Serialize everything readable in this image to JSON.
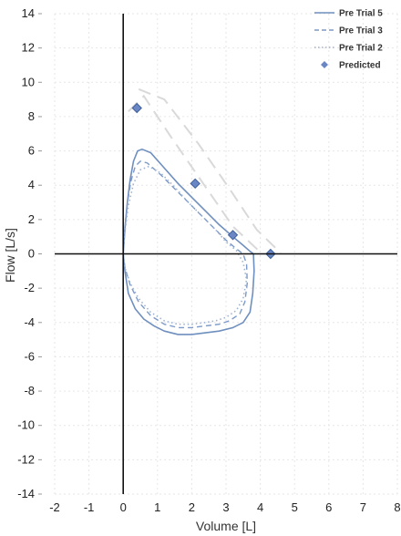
{
  "chart_data": {
    "type": "line",
    "xlabel": "Volume [L]",
    "ylabel": "Flow [L/s]",
    "xlim": [
      -2,
      8
    ],
    "ylim": [
      -14,
      14
    ],
    "x_ticks": [
      "-2",
      "-1",
      "0",
      "1",
      "2",
      "3",
      "4",
      "5",
      "6",
      "7",
      "8"
    ],
    "y_ticks": [
      "14",
      "12",
      "10",
      "8",
      "6",
      "4",
      "2",
      "0",
      "-2",
      "-4",
      "-6",
      "-8",
      "-10",
      "-12",
      "-14"
    ],
    "grid": true,
    "legend_position": "top-right",
    "legend": [
      "Pre Trial 5",
      "Pre Trial 3",
      "Pre Trial 2",
      "Predicted"
    ],
    "colors": {
      "trial5": "#6f8fbf",
      "trial3": "#7d9ac8",
      "trial2": "#9fb2cf",
      "predicted": "#6a86c4",
      "predicted_envelope": "#d9d9d9",
      "axis": "#111111",
      "grid": "#e6e6e6"
    },
    "series": [
      {
        "name": "Pre Trial 5",
        "style": "solid",
        "x": [
          0.0,
          0.05,
          0.12,
          0.2,
          0.3,
          0.42,
          0.55,
          0.8,
          1.2,
          1.6,
          2.0,
          2.4,
          2.8,
          3.2,
          3.5,
          3.7,
          3.8,
          3.82,
          3.78,
          3.7,
          3.5,
          3.2,
          2.8,
          2.4,
          2.0,
          1.6,
          1.2,
          0.9,
          0.6,
          0.35,
          0.15,
          0.05,
          0.0
        ],
        "y": [
          0.0,
          1.5,
          3.0,
          4.3,
          5.4,
          6.0,
          6.1,
          5.9,
          5.0,
          4.1,
          3.3,
          2.5,
          1.7,
          1.0,
          0.5,
          0.15,
          0.0,
          -1.0,
          -2.3,
          -3.4,
          -4.0,
          -4.3,
          -4.5,
          -4.6,
          -4.7,
          -4.7,
          -4.5,
          -4.2,
          -3.8,
          -3.2,
          -2.3,
          -1.0,
          0.0
        ]
      },
      {
        "name": "Pre Trial 3",
        "style": "dashed",
        "x": [
          0.0,
          0.05,
          0.12,
          0.22,
          0.35,
          0.5,
          0.7,
          1.1,
          1.5,
          1.9,
          2.3,
          2.7,
          3.0,
          3.3,
          3.5,
          3.6,
          3.62,
          3.55,
          3.4,
          3.1,
          2.8,
          2.4,
          2.0,
          1.6,
          1.2,
          0.8,
          0.45,
          0.2,
          0.05,
          0.0
        ],
        "y": [
          0.0,
          1.4,
          2.9,
          4.2,
          5.1,
          5.4,
          5.3,
          4.6,
          3.8,
          3.0,
          2.2,
          1.4,
          0.8,
          0.3,
          0.0,
          -0.6,
          -1.7,
          -2.8,
          -3.5,
          -3.9,
          -4.1,
          -4.2,
          -4.3,
          -4.3,
          -4.1,
          -3.6,
          -2.8,
          -1.8,
          -0.8,
          0.0
        ]
      },
      {
        "name": "Pre Trial 2",
        "style": "dotted",
        "x": [
          0.0,
          0.05,
          0.15,
          0.3,
          0.5,
          0.75,
          1.1,
          1.5,
          1.9,
          2.3,
          2.7,
          3.0,
          3.3,
          3.5,
          3.6,
          3.5,
          3.3,
          3.0,
          2.7,
          2.4,
          2.0,
          1.6,
          1.2,
          0.8,
          0.45,
          0.2,
          0.05,
          0.0
        ],
        "y": [
          0.0,
          1.3,
          2.8,
          4.1,
          4.9,
          5.1,
          4.7,
          3.9,
          3.0,
          2.2,
          1.4,
          0.7,
          0.2,
          -0.5,
          -1.5,
          -2.6,
          -3.3,
          -3.7,
          -3.9,
          -4.0,
          -4.1,
          -4.1,
          -3.9,
          -3.4,
          -2.6,
          -1.7,
          -0.8,
          0.0
        ]
      },
      {
        "name": "Predicted",
        "style": "markers",
        "x": [
          0.4,
          2.1,
          3.2,
          4.3
        ],
        "y": [
          8.5,
          4.1,
          1.1,
          0.0
        ]
      }
    ],
    "predicted_envelope": [
      {
        "x": [
          0.15,
          0.6,
          1.4,
          2.3,
          3.2,
          4.0
        ],
        "y": [
          8.3,
          9.2,
          6.8,
          4.2,
          1.6,
          0.1
        ]
      },
      {
        "x": [
          0.45,
          1.2,
          2.2,
          3.1,
          3.9,
          4.6
        ],
        "y": [
          9.6,
          9.0,
          6.4,
          3.8,
          1.4,
          0.05
        ]
      }
    ]
  }
}
